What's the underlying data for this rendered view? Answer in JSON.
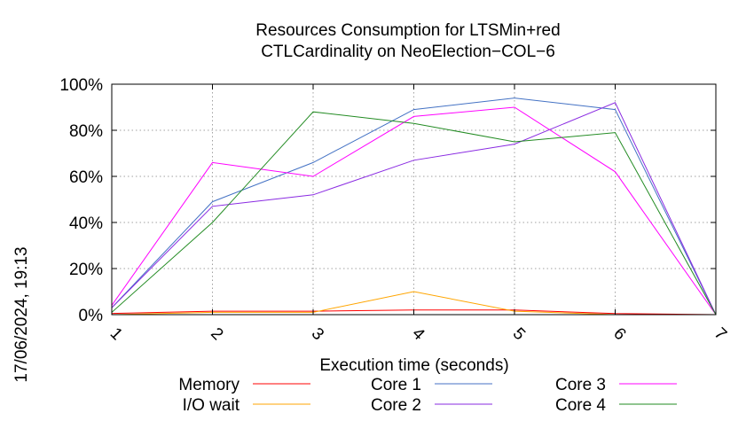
{
  "chart_data": {
    "type": "line",
    "title": [
      "Resources Consumption for LTSMin+red",
      "CTLCardinality on NeoElection−COL−6"
    ],
    "xlabel": "Execution time (seconds)",
    "ylabel": "",
    "side_label": "17/06/2024, 19:13",
    "x": [
      1,
      2,
      3,
      4,
      5,
      6,
      7
    ],
    "xlim": [
      1,
      7
    ],
    "ylim": [
      0,
      100
    ],
    "x_ticks": [
      "1",
      "2",
      "3",
      "4",
      "5",
      "6",
      "7"
    ],
    "y_ticks": [
      {
        "value": 0,
        "label": "0%"
      },
      {
        "value": 20,
        "label": "20%"
      },
      {
        "value": 40,
        "label": "40%"
      },
      {
        "value": 60,
        "label": "60%"
      },
      {
        "value": 80,
        "label": "80%"
      },
      {
        "value": 100,
        "label": "100%"
      }
    ],
    "grid": true,
    "legend_position": "bottom",
    "series": [
      {
        "name": "Memory",
        "color": "#ff0000",
        "values": [
          0.5,
          1.5,
          1.5,
          2,
          2,
          0.5,
          0
        ]
      },
      {
        "name": "I/O wait",
        "color": "#ffa500",
        "values": [
          0,
          1,
          1,
          10,
          1.5,
          0,
          0
        ]
      },
      {
        "name": "Core 1",
        "color": "#4472c4",
        "values": [
          3,
          49,
          66,
          89,
          94,
          89,
          0
        ]
      },
      {
        "name": "Core 2",
        "color": "#8a2be2",
        "values": [
          3,
          47,
          52,
          67,
          74,
          92,
          0
        ]
      },
      {
        "name": "Core 3",
        "color": "#ff00ff",
        "values": [
          4,
          66,
          60,
          86,
          90,
          62,
          0
        ]
      },
      {
        "name": "Core 4",
        "color": "#228b22",
        "values": [
          1,
          40,
          88,
          83,
          75,
          79,
          0
        ]
      }
    ]
  }
}
